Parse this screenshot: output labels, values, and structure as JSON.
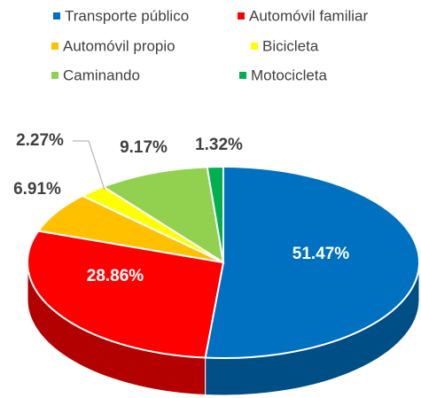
{
  "chart_data": {
    "type": "pie3d",
    "categories": [
      "Transporte público",
      "Automóvil familiar",
      "Automóvil propio",
      "Bicicleta",
      "Caminando",
      "Motocicleta"
    ],
    "values": [
      51.47,
      28.86,
      6.91,
      2.27,
      9.17,
      1.32
    ],
    "value_labels": [
      "51.47%",
      "28.86%",
      "6.91%",
      "2.27%",
      "9.17%",
      "1.32%"
    ],
    "colors": [
      "#0070c0",
      "#ff0000",
      "#ffc000",
      "#ffff00",
      "#92d050",
      "#00b050"
    ],
    "legend": "top"
  }
}
